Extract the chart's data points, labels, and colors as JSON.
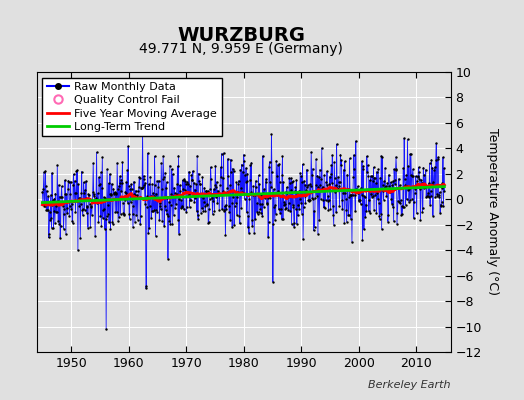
{
  "title": "WURZBURG",
  "subtitle": "49.771 N, 9.959 E (Germany)",
  "ylabel": "Temperature Anomaly (°C)",
  "attribution": "Berkeley Earth",
  "year_start": 1945,
  "year_end": 2014,
  "ylim": [
    -12,
    10
  ],
  "yticks": [
    -12,
    -10,
    -8,
    -6,
    -4,
    -2,
    0,
    2,
    4,
    6,
    8,
    10
  ],
  "xlim": [
    1944,
    2016
  ],
  "xticks": [
    1950,
    1960,
    1970,
    1980,
    1990,
    2000,
    2010
  ],
  "raw_color": "#0000FF",
  "dot_color": "#000000",
  "ma_color": "#FF0000",
  "trend_color": "#00CC00",
  "qc_color": "#FF69B4",
  "background_color": "#E0E0E0",
  "grid_color": "#FFFFFF",
  "title_fontsize": 14,
  "subtitle_fontsize": 10,
  "ylabel_fontsize": 9,
  "tick_fontsize": 9,
  "legend_fontsize": 8
}
